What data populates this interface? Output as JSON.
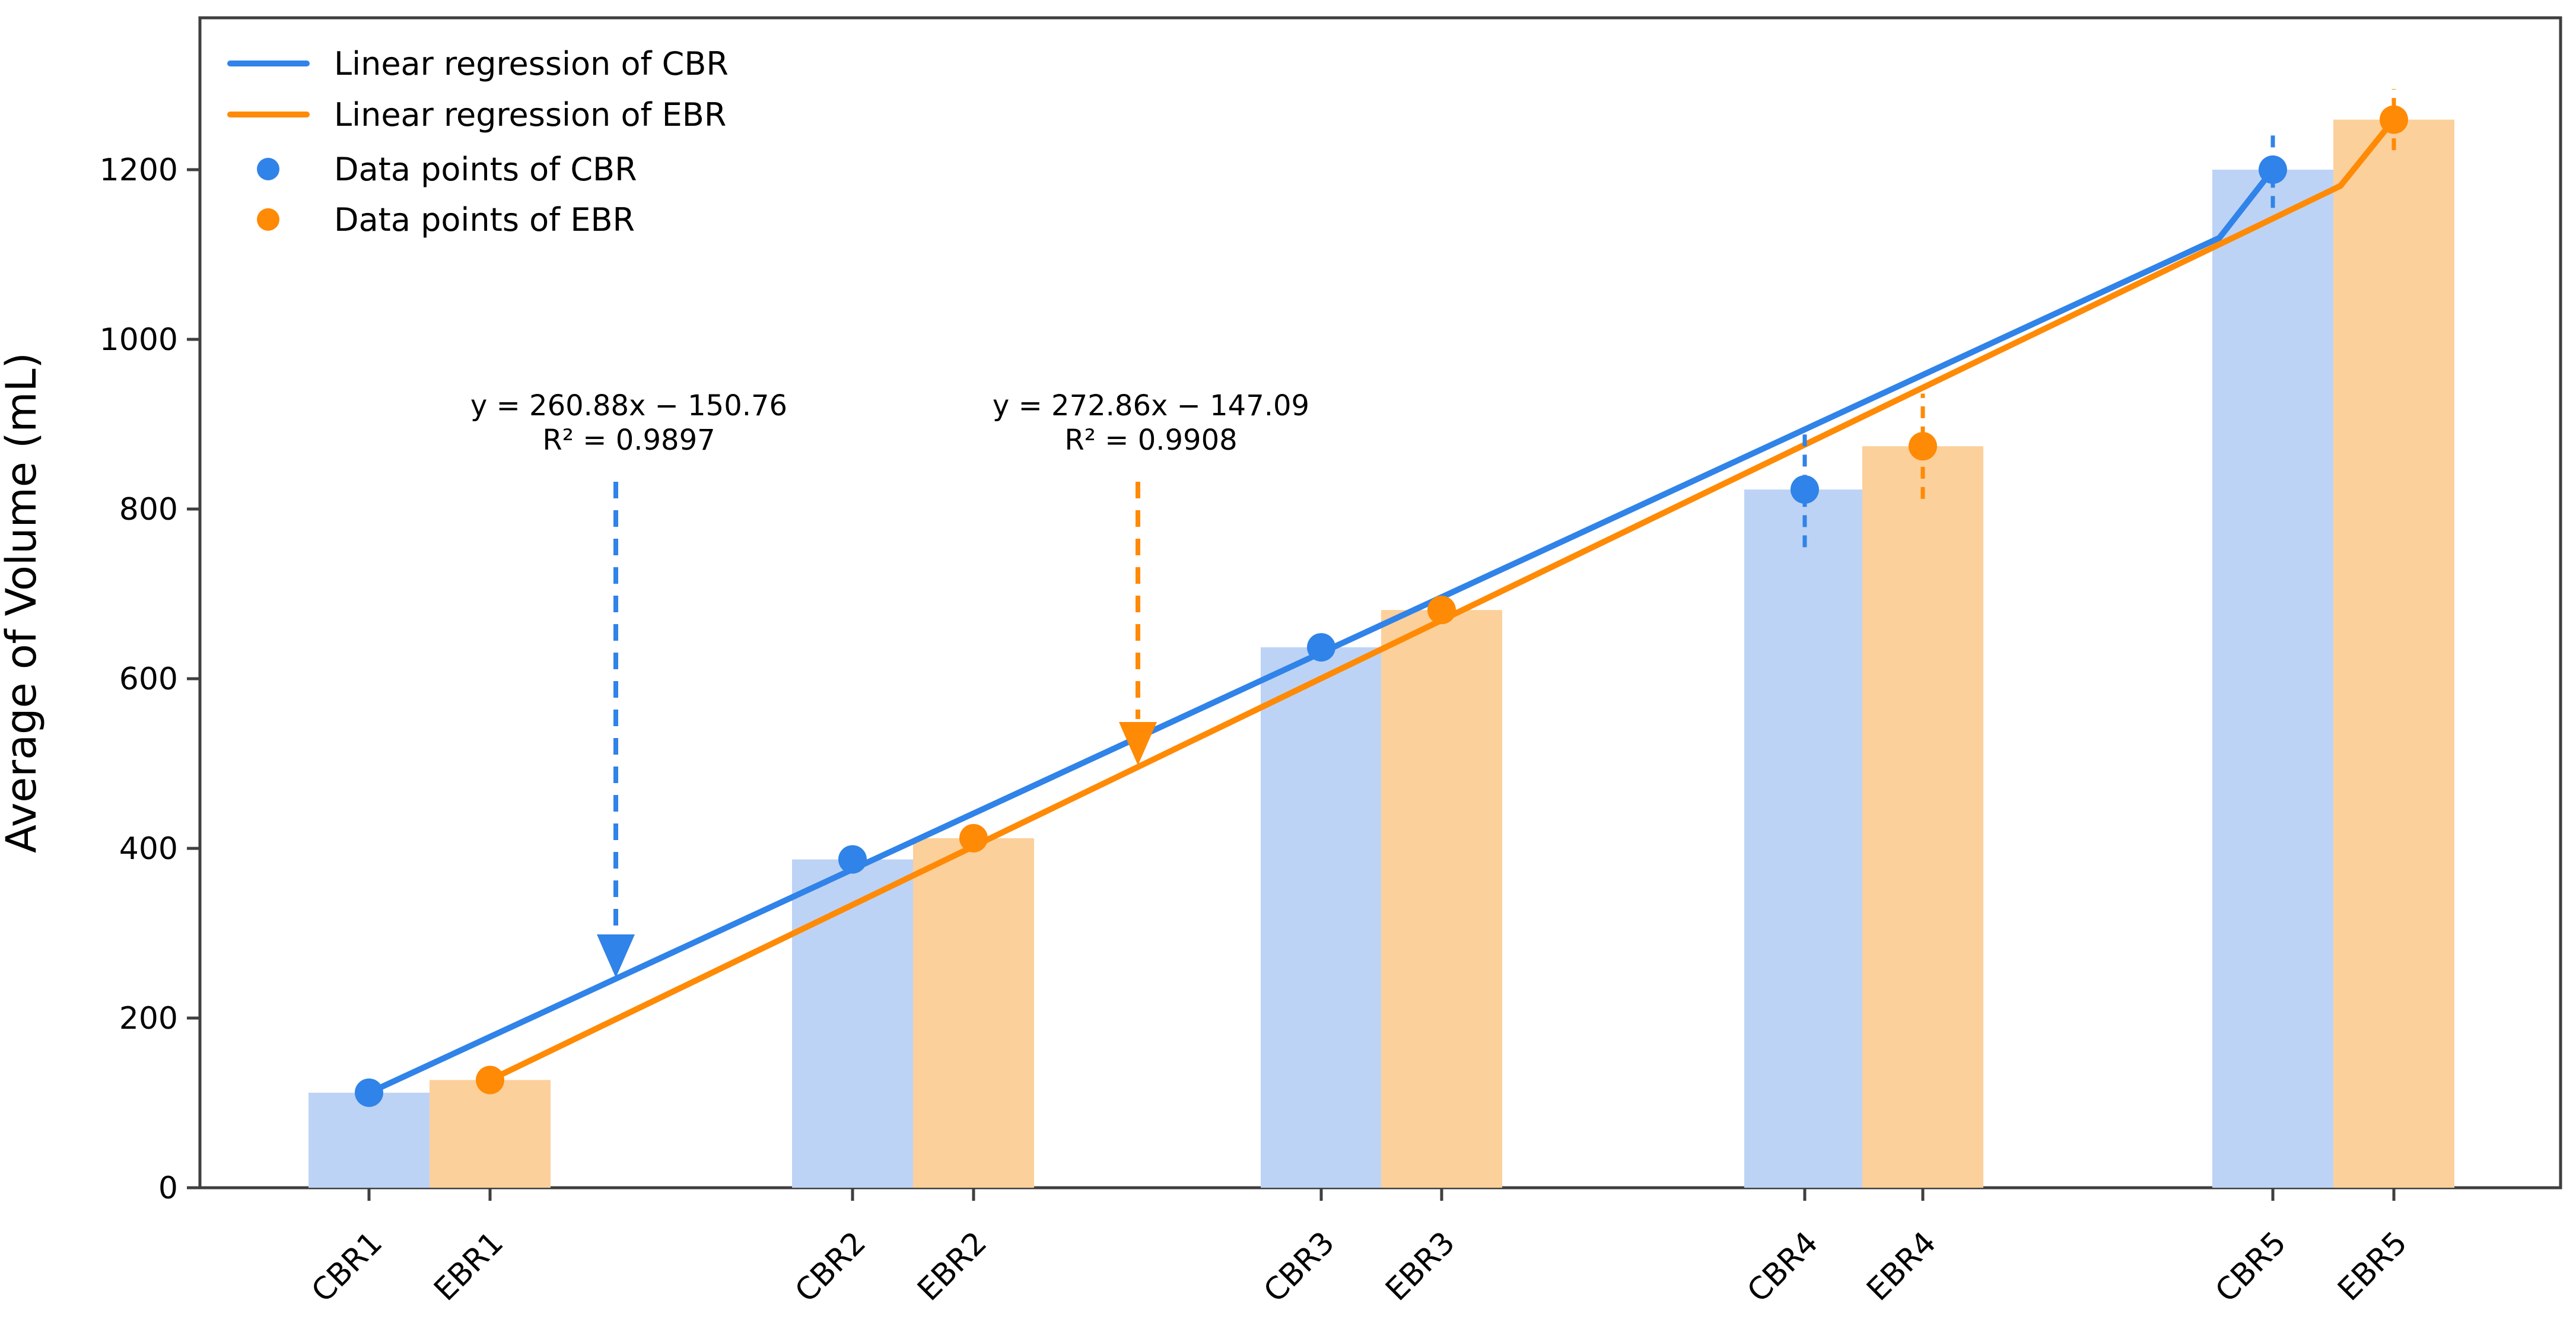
{
  "figure": {
    "background": "#ffffff"
  },
  "axis": {
    "spine_color": "#3f3f3f",
    "text_color": "#000000"
  },
  "chart_data": {
    "type": "bar",
    "title": "",
    "xlabel": "",
    "ylabel": "Average of Volume (mL)",
    "ylim": [
      0,
      1380
    ],
    "yticks": [
      0,
      200,
      400,
      600,
      800,
      1000,
      1200
    ],
    "categories": [
      "CBR1",
      "EBR1",
      "CBR2",
      "EBR2",
      "CBR3",
      "EBR3",
      "CBR4",
      "EBR4",
      "CBR5",
      "EBR5"
    ],
    "grid": false,
    "legend_position": "upper-left",
    "series": [
      {
        "name": "CBR",
        "bar_color": "#bdd3f5",
        "accent_color": "#3083e8",
        "categories": [
          "CBR1",
          "CBR2",
          "CBR3",
          "CBR4",
          "CBR5"
        ],
        "values": [
          112,
          387,
          637,
          823,
          1200
        ],
        "errors": [
          0,
          0,
          0,
          68,
          45
        ]
      },
      {
        "name": "EBR",
        "bar_color": "#fcd09b",
        "accent_color": "#ff8a05",
        "categories": [
          "EBR1",
          "EBR2",
          "EBR3",
          "EBR4",
          "EBR5"
        ],
        "values": [
          127,
          412,
          681,
          874,
          1259
        ],
        "errors": [
          0,
          0,
          0,
          62,
          36
        ]
      }
    ],
    "regressions": [
      {
        "series": "CBR",
        "label": "Linear regression of CBR",
        "equation": "y = 260.88x − 150.76",
        "r_squared": "R² = 0.9897",
        "slope": 260.88,
        "intercept": -150.76,
        "color": "#3083e8"
      },
      {
        "series": "EBR",
        "label": "Linear regression of EBR",
        "equation": "y = 272.86x − 147.09",
        "r_squared": "R² = 0.9908",
        "slope": 272.86,
        "intercept": -147.09,
        "color": "#ff8a05"
      }
    ],
    "legend": [
      {
        "label": "Linear regression of CBR",
        "marker": "line",
        "color": "#3083e8"
      },
      {
        "label": "Linear regression of EBR",
        "marker": "line",
        "color": "#ff8a05"
      },
      {
        "label": "Data points of CBR",
        "marker": "dot",
        "color": "#3083e8"
      },
      {
        "label": "Data points of EBR",
        "marker": "dot",
        "color": "#ff8a05"
      }
    ],
    "annotations": [
      {
        "equation": "y = 260.88x − 150.76",
        "r_squared": "R² = 0.9897",
        "arrow_color": "#3083e8"
      },
      {
        "equation": "y = 272.86x − 147.09",
        "r_squared": "R² = 0.9908",
        "arrow_color": "#ff8a05"
      }
    ]
  }
}
